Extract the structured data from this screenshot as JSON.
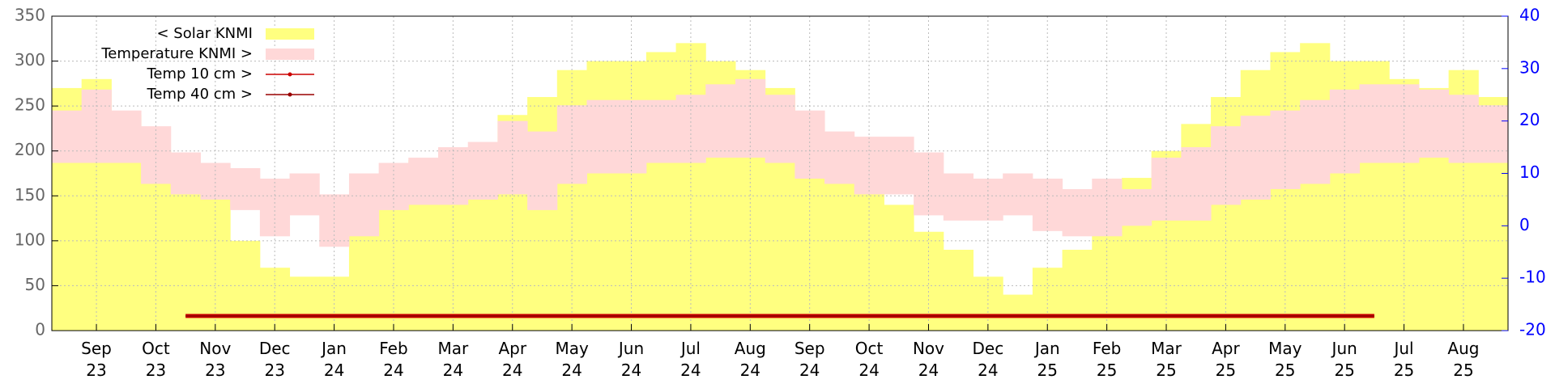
{
  "chart_data": {
    "type": "weather",
    "categories": [
      null,
      "Sep\n23",
      null,
      "Oct\n23",
      null,
      "Nov\n23",
      null,
      "Dec\n23",
      null,
      "Jan\n24",
      null,
      "Feb\n24",
      null,
      "Mar\n24",
      null,
      "Apr\n24",
      null,
      "May\n24",
      null,
      "Jun\n24",
      null,
      "Jul\n24",
      null,
      "Aug\n24",
      null,
      "Sep\n24",
      null,
      "Oct\n24",
      null,
      "Nov\n24",
      null,
      "Dec\n24",
      null,
      "Jan\n25",
      null,
      "Feb\n25",
      null,
      "Mar\n25",
      null,
      "Apr\n25",
      null,
      "May\n25",
      null,
      "Jun\n25",
      null,
      "Jul\n25",
      null,
      "Aug\n25",
      null
    ],
    "series": [
      {
        "name": "< Solar KNMI",
        "color": "#ffff80",
        "values": [
          270,
          280,
          240,
          200,
          180,
          150,
          100,
          70,
          60,
          60,
          110,
          150,
          190,
          190,
          200,
          240,
          260,
          290,
          300,
          300,
          310,
          320,
          300,
          290,
          270,
          230,
          200,
          180,
          140,
          110,
          90,
          60,
          40,
          70,
          90,
          120,
          170,
          200,
          230,
          260,
          290,
          310,
          320,
          300,
          300,
          280,
          270,
          290,
          260
        ]
      },
      {
        "name": "Temperature KNMI >",
        "color": "#ffd8d8",
        "axis": "y2",
        "values": [
          [
            12,
            22
          ],
          [
            12,
            26
          ],
          [
            12,
            22
          ],
          [
            8,
            19
          ],
          [
            6,
            14
          ],
          [
            5,
            12
          ],
          [
            3,
            11
          ],
          [
            -2,
            9
          ],
          [
            2,
            10
          ],
          [
            -4,
            6
          ],
          [
            -2,
            10
          ],
          [
            3,
            12
          ],
          [
            4,
            13
          ],
          [
            4,
            15
          ],
          [
            5,
            16
          ],
          [
            6,
            20
          ],
          [
            3,
            18
          ],
          [
            8,
            23
          ],
          [
            10,
            24
          ],
          [
            10,
            24
          ],
          [
            12,
            24
          ],
          [
            12,
            25
          ],
          [
            13,
            27
          ],
          [
            13,
            28
          ],
          [
            12,
            25
          ],
          [
            9,
            22
          ],
          [
            8,
            18
          ],
          [
            6,
            17
          ],
          [
            6,
            17
          ],
          [
            2,
            14
          ],
          [
            1,
            10
          ],
          [
            1,
            9
          ],
          [
            2,
            10
          ],
          [
            -1,
            9
          ],
          [
            -2,
            7
          ],
          [
            -2,
            9
          ],
          [
            0,
            7
          ],
          [
            1,
            13
          ],
          [
            1,
            15
          ],
          [
            4,
            19
          ],
          [
            5,
            21
          ],
          [
            7,
            22
          ],
          [
            8,
            24
          ],
          [
            10,
            26
          ],
          [
            12,
            27
          ],
          [
            12,
            27
          ],
          [
            13,
            26
          ],
          [
            12,
            25
          ],
          [
            12,
            23
          ]
        ]
      },
      {
        "name": "Temp 10 cm >",
        "color": "#cc0000",
        "axis": "y2",
        "values": [
          null,
          null,
          null,
          null,
          -17.2,
          -17.2,
          -17.2,
          -17.2,
          -17.2,
          -17.2,
          -17.2,
          -17.2,
          -17.2,
          -17.2,
          -17.2,
          -17.2,
          -17.2,
          -17.2,
          -17.2,
          -17.2,
          -17.2,
          -17.2,
          -17.2,
          -17.2,
          -17.2,
          -17.2,
          -17.2,
          -17.2,
          -17.2,
          -17.2,
          -17.2,
          -17.2,
          -17.2,
          -17.2,
          -17.2,
          -17.2,
          -17.2,
          -17.2,
          -17.2,
          -17.2,
          -17.2,
          -17.2,
          -17.2,
          -17.2,
          -17.2,
          null,
          null,
          null,
          null
        ]
      },
      {
        "name": "Temp 40 cm >",
        "color": "#990000",
        "axis": "y2",
        "values": [
          null,
          null,
          null,
          null,
          -17.2,
          -17.2,
          -17.2,
          -17.2,
          -17.2,
          -17.2,
          -17.2,
          -17.2,
          -17.2,
          -17.2,
          -17.2,
          -17.2,
          -17.2,
          -17.2,
          -17.2,
          -17.2,
          -17.2,
          -17.2,
          -17.2,
          -17.2,
          -17.2,
          -17.2,
          -17.2,
          -17.2,
          -17.2,
          -17.2,
          -17.2,
          -17.2,
          -17.2,
          -17.2,
          -17.2,
          -17.2,
          -17.2,
          -17.2,
          -17.2,
          -17.2,
          -17.2,
          -17.2,
          -17.2,
          -17.2,
          -17.2,
          null,
          null,
          null,
          null
        ]
      }
    ],
    "ylim": [
      0,
      350
    ],
    "yticks": [
      0,
      50,
      100,
      150,
      200,
      250,
      300,
      350
    ],
    "y2lim": [
      -20,
      40
    ],
    "y2ticks": [
      -20,
      -10,
      0,
      10,
      20,
      30,
      40
    ],
    "y2color": "#0000ff",
    "grid": true,
    "legend": "top-left"
  }
}
